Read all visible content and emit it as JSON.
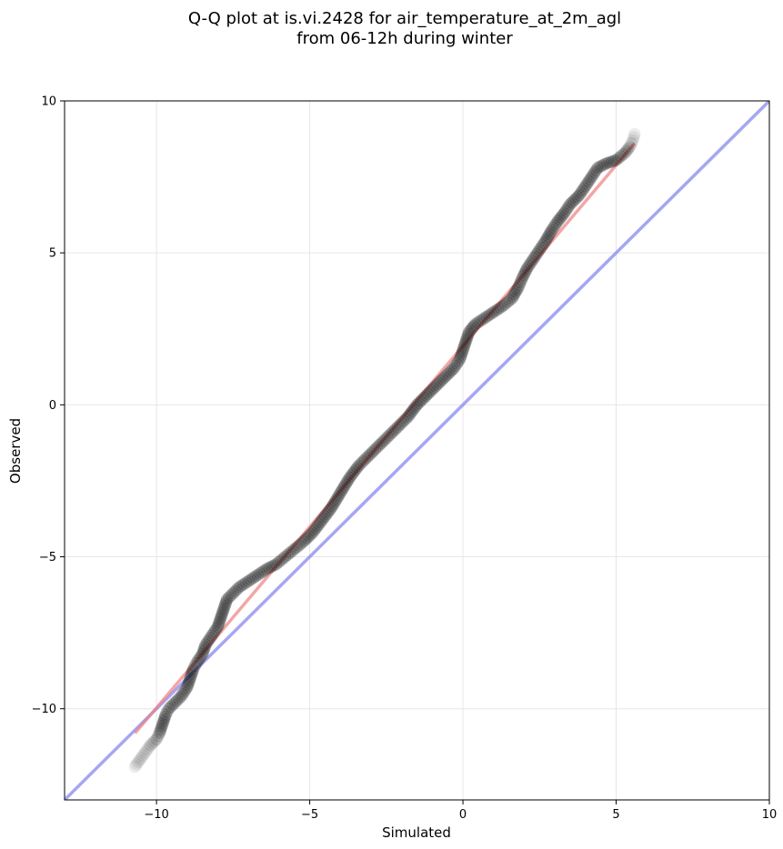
{
  "chart_data": {
    "type": "scatter",
    "title_line1": "Q-Q plot at is.vi.2428 for air_temperature_at_2m_agl",
    "title_line2": "from 06-12h during winter",
    "xlabel": "Simulated",
    "ylabel": "Observed",
    "xlim": [
      -13,
      10
    ],
    "ylim": [
      -13,
      10
    ],
    "xticks": [
      -10,
      -5,
      0,
      5,
      10
    ],
    "yticks": [
      -10,
      -5,
      0,
      5,
      10
    ],
    "xtick_labels": [
      "−10",
      "−5",
      "0",
      "5",
      "10"
    ],
    "ytick_labels": [
      "−10",
      "−5",
      "0",
      "5",
      "10"
    ],
    "grid": true,
    "identity_line": {
      "from": [
        -13,
        -13
      ],
      "to": [
        10,
        10
      ],
      "color": "#8080ee"
    },
    "fit_line": {
      "from": [
        -10.7,
        -10.8
      ],
      "to": [
        5.6,
        8.6
      ],
      "color": "#ee8080"
    },
    "point_color": "#000000",
    "quantiles": [
      [
        -10.7,
        -11.9
      ],
      [
        -10.2,
        -11.2
      ],
      [
        -10.0,
        -11.0
      ],
      [
        -9.9,
        -10.8
      ],
      [
        -9.8,
        -10.5
      ],
      [
        -9.7,
        -10.2
      ],
      [
        -9.6,
        -10.0
      ],
      [
        -9.4,
        -9.8
      ],
      [
        -9.2,
        -9.6
      ],
      [
        -9.0,
        -9.3
      ],
      [
        -8.9,
        -9.0
      ],
      [
        -8.8,
        -8.7
      ],
      [
        -8.7,
        -8.5
      ],
      [
        -8.5,
        -8.2
      ],
      [
        -8.4,
        -7.9
      ],
      [
        -8.2,
        -7.6
      ],
      [
        -8.0,
        -7.3
      ],
      [
        -7.9,
        -7.0
      ],
      [
        -7.8,
        -6.7
      ],
      [
        -7.7,
        -6.4
      ],
      [
        -7.5,
        -6.2
      ],
      [
        -7.3,
        -6.0
      ],
      [
        -7.0,
        -5.8
      ],
      [
        -6.7,
        -5.6
      ],
      [
        -6.4,
        -5.4
      ],
      [
        -6.1,
        -5.25
      ],
      [
        -5.8,
        -5.0
      ],
      [
        -5.5,
        -4.75
      ],
      [
        -5.2,
        -4.5
      ],
      [
        -4.9,
        -4.2
      ],
      [
        -4.6,
        -3.8
      ],
      [
        -4.3,
        -3.4
      ],
      [
        -4.0,
        -2.9
      ],
      [
        -3.7,
        -2.4
      ],
      [
        -3.4,
        -2.0
      ],
      [
        -3.0,
        -1.6
      ],
      [
        -2.6,
        -1.2
      ],
      [
        -2.2,
        -0.8
      ],
      [
        -1.8,
        -0.4
      ],
      [
        -1.5,
        0.0
      ],
      [
        -1.2,
        0.3
      ],
      [
        -0.9,
        0.6
      ],
      [
        -0.6,
        0.9
      ],
      [
        -0.3,
        1.2
      ],
      [
        -0.1,
        1.5
      ],
      [
        0.0,
        1.8
      ],
      [
        0.1,
        2.1
      ],
      [
        0.2,
        2.4
      ],
      [
        0.4,
        2.65
      ],
      [
        0.7,
        2.85
      ],
      [
        1.0,
        3.05
      ],
      [
        1.3,
        3.25
      ],
      [
        1.6,
        3.5
      ],
      [
        1.8,
        3.85
      ],
      [
        1.95,
        4.2
      ],
      [
        2.1,
        4.5
      ],
      [
        2.3,
        4.8
      ],
      [
        2.5,
        5.1
      ],
      [
        2.7,
        5.4
      ],
      [
        2.9,
        5.75
      ],
      [
        3.1,
        6.05
      ],
      [
        3.3,
        6.3
      ],
      [
        3.5,
        6.6
      ],
      [
        3.8,
        6.9
      ],
      [
        4.0,
        7.2
      ],
      [
        4.2,
        7.5
      ],
      [
        4.4,
        7.8
      ],
      [
        4.7,
        7.95
      ],
      [
        5.0,
        8.05
      ],
      [
        5.3,
        8.3
      ],
      [
        5.45,
        8.5
      ],
      [
        5.55,
        8.7
      ],
      [
        5.6,
        8.9
      ]
    ]
  }
}
